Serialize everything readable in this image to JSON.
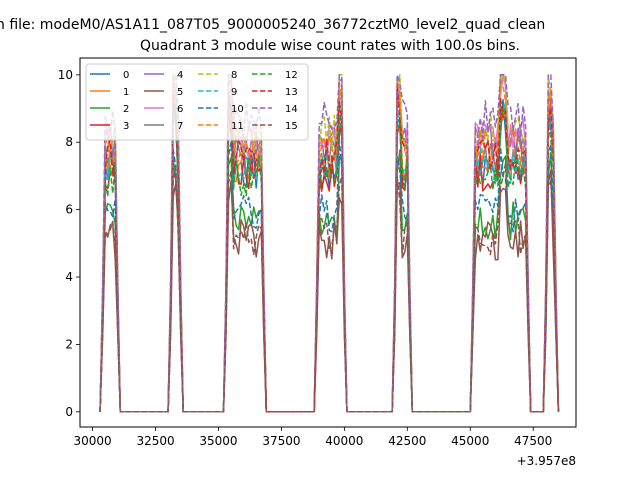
{
  "figure": {
    "suptitle": "n file: modeM0/AS1A11_087T05_9000005240_36772cztM0_level2_quad_clean",
    "title": "Quadrant 3 module wise count rates with 100.0s bins.",
    "offset_label": "+3.957e8"
  },
  "chart_data": {
    "type": "line",
    "title": "Quadrant 3 module wise count rates with 100.0s bins.",
    "xlabel": "",
    "ylabel": "",
    "xlim": [
      29500,
      49200
    ],
    "ylim": [
      -0.45,
      10.5
    ],
    "x_offset": 395700000,
    "grid": false,
    "legend_placement": "top-left",
    "x_ticks": [
      30000,
      32500,
      35000,
      37500,
      40000,
      42500,
      45000,
      47500
    ],
    "x_tick_labels": [
      "30000",
      "32500",
      "35000",
      "37500",
      "40000",
      "42500",
      "45000",
      "47500"
    ],
    "y_ticks": [
      0,
      2,
      4,
      6,
      8,
      10
    ],
    "y_tick_labels": [
      "0",
      "2",
      "4",
      "6",
      "8",
      "10"
    ],
    "segments_note_x": [
      [
        30400,
        31000
      ],
      [
        33100,
        33500
      ],
      [
        35300,
        36800
      ],
      [
        38900,
        40000
      ],
      [
        42000,
        42600
      ],
      [
        45100,
        47300
      ],
      [
        48000,
        48400
      ]
    ],
    "series": [
      {
        "name": "0",
        "color": "#1f77b4",
        "dash": false,
        "level": 7.2
      },
      {
        "name": "1",
        "color": "#ff7f0e",
        "dash": false,
        "level": 7.4
      },
      {
        "name": "2",
        "color": "#2ca02c",
        "dash": false,
        "level": 5.7
      },
      {
        "name": "3",
        "color": "#d62728",
        "dash": false,
        "level": 7.1
      },
      {
        "name": "4",
        "color": "#9467bd",
        "dash": false,
        "level": 8.0
      },
      {
        "name": "5",
        "color": "#8c564b",
        "dash": false,
        "level": 5.1
      },
      {
        "name": "6",
        "color": "#e377c2",
        "dash": false,
        "level": 8.1
      },
      {
        "name": "7",
        "color": "#7f7f7f",
        "dash": false,
        "level": 7.6
      },
      {
        "name": "8",
        "color": "#bcbd22",
        "dash": true,
        "level": 8.3
      },
      {
        "name": "9",
        "color": "#17becf",
        "dash": true,
        "level": 7.3
      },
      {
        "name": "10",
        "color": "#1f77b4",
        "dash": true,
        "level": 5.9
      },
      {
        "name": "11",
        "color": "#ff7f0e",
        "dash": true,
        "level": 7.8
      },
      {
        "name": "12",
        "color": "#2ca02c",
        "dash": true,
        "level": 7.0
      },
      {
        "name": "13",
        "color": "#d62728",
        "dash": true,
        "level": 7.5
      },
      {
        "name": "14",
        "color": "#9467bd",
        "dash": true,
        "level": 8.7
      },
      {
        "name": "15",
        "color": "#8c564b",
        "dash": true,
        "level": 5.2
      }
    ],
    "segments": [
      {
        "x": [
          30400,
          31000
        ],
        "peak_x": null
      },
      {
        "x": [
          33100,
          33500
        ],
        "peak_x": 33200
      },
      {
        "x": [
          35300,
          36800
        ],
        "peak_x": 35400
      },
      {
        "x": [
          38900,
          40000
        ],
        "peak_x": 39900
      },
      {
        "x": [
          42000,
          42600
        ],
        "peak_x": 42100
      },
      {
        "x": [
          45100,
          47300
        ],
        "peak_x": 46300
      },
      {
        "x": [
          48000,
          48400
        ],
        "peak_x": 48100
      }
    ]
  }
}
